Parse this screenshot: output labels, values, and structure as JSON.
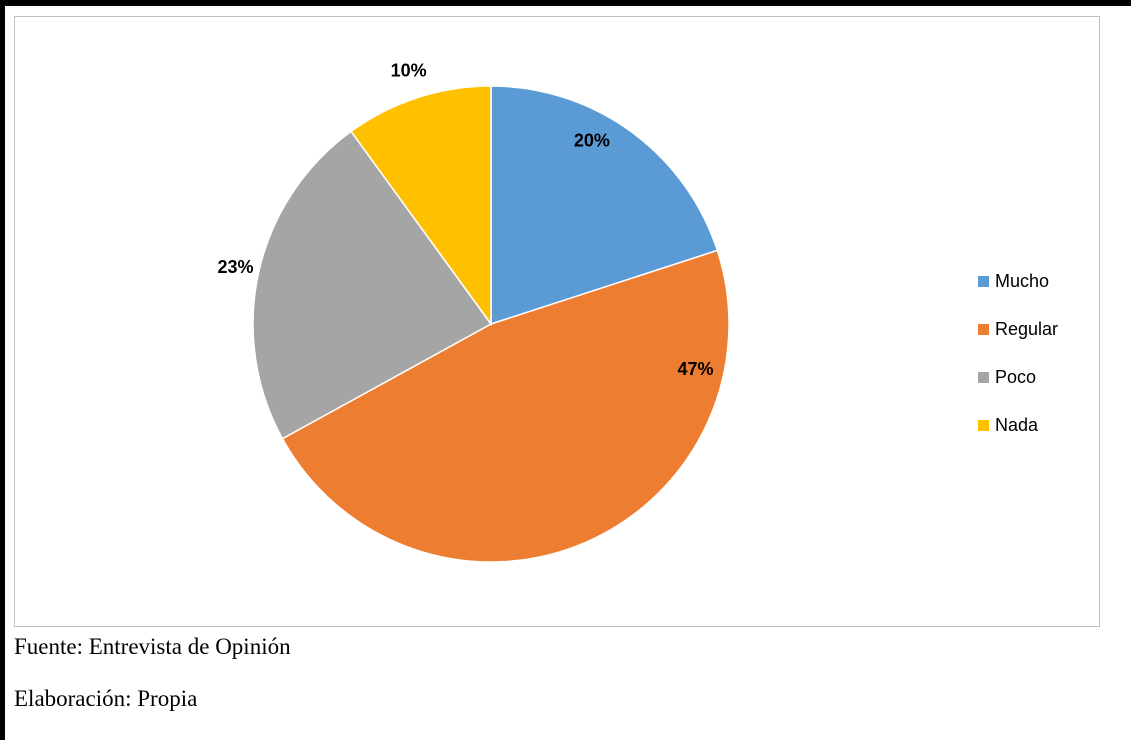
{
  "chart_data": {
    "type": "pie",
    "categories": [
      "Mucho",
      "Regular",
      "Poco",
      "Nada"
    ],
    "values": [
      20,
      47,
      23,
      10
    ],
    "data_labels": [
      "20%",
      "47%",
      "23%",
      "10%"
    ],
    "colors": [
      "#5B9BD5",
      "#ED7D31",
      "#A5A5A5",
      "#FFC000"
    ],
    "title": "",
    "legend_position": "right"
  },
  "captions": {
    "source": "Fuente: Entrevista de Opinión",
    "author": "Elaboración: Propia"
  }
}
